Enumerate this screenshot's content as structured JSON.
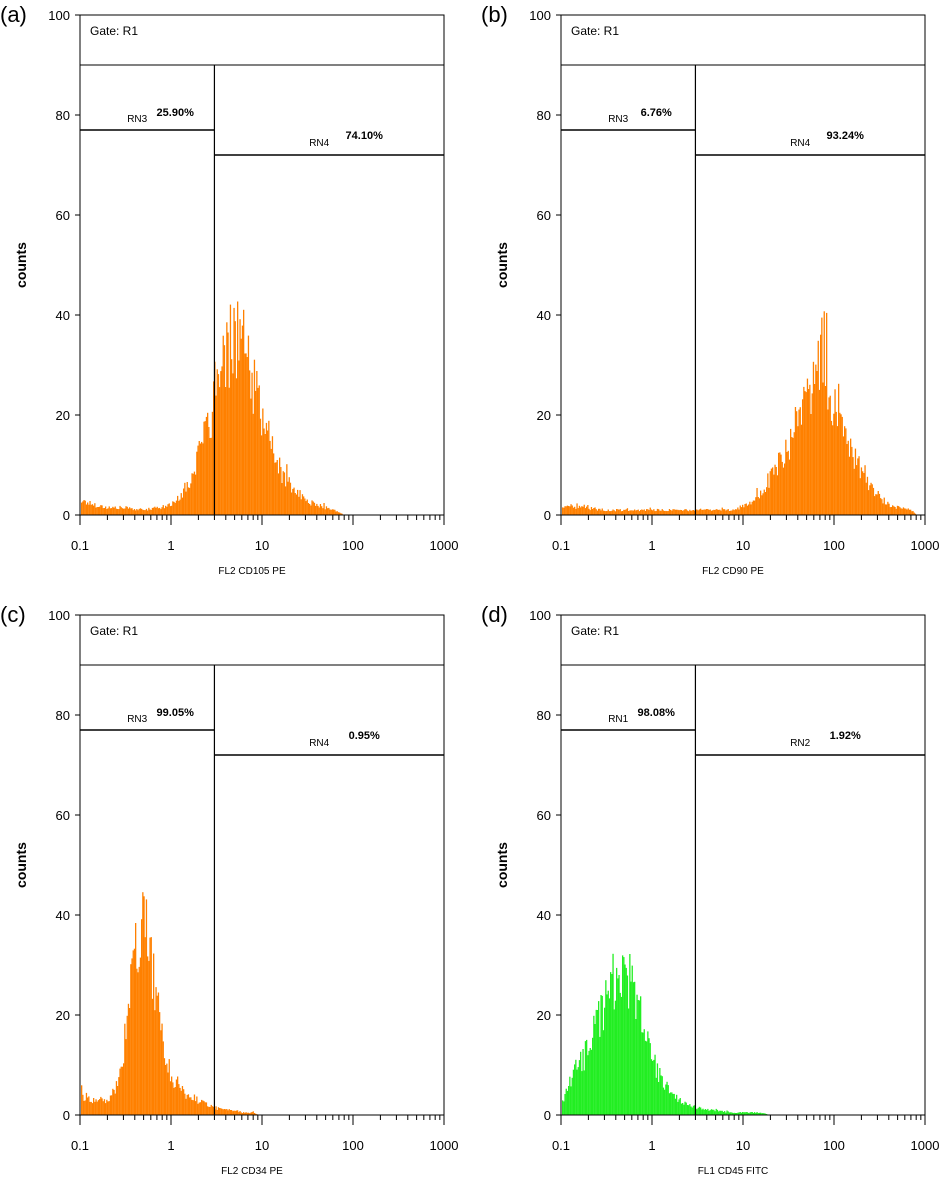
{
  "colors": {
    "orange": "#ff8000",
    "green": "#22ee22"
  },
  "chart_data": [
    {
      "panel": "(a)",
      "type": "histogram",
      "gate_label": "Gate: R1",
      "xlabel": "FL2  CD105 PE",
      "ylabel": "counts",
      "x_scale": "log",
      "xlim": [
        0.1,
        1000
      ],
      "ylim": [
        0,
        100
      ],
      "x_ticks": [
        "0.1",
        "1",
        "10",
        "100",
        "1000"
      ],
      "y_ticks": [
        "0",
        "20",
        "40",
        "60",
        "80",
        "100"
      ],
      "color": "#ff8000",
      "histogram": {
        "x": [
          0.1,
          0.15,
          0.2,
          0.3,
          0.5,
          0.7,
          1,
          1.5,
          2,
          2.5,
          3,
          4,
          5,
          6,
          7,
          8,
          10,
          12,
          15,
          20,
          30,
          40,
          50,
          70,
          80
        ],
        "y": [
          3,
          2,
          1.5,
          1.5,
          1,
          1.5,
          2,
          6,
          12,
          18,
          24,
          32,
          38,
          36,
          30,
          26,
          20,
          15,
          10,
          6,
          3,
          2,
          1.5,
          0.5,
          0
        ]
      },
      "gate_x": 3,
      "regions": [
        {
          "name": "RN3",
          "percent": "25.90%",
          "y": 77
        },
        {
          "name": "RN4",
          "percent": "74.10%",
          "y": 72
        }
      ]
    },
    {
      "panel": "(b)",
      "type": "histogram",
      "gate_label": "Gate: R1",
      "xlabel": "FL2  CD90 PE",
      "ylabel": "counts",
      "x_scale": "log",
      "xlim": [
        0.1,
        1000
      ],
      "ylim": [
        0,
        100
      ],
      "x_ticks": [
        "0.1",
        "1",
        "10",
        "100",
        "1000"
      ],
      "y_ticks": [
        "0",
        "20",
        "40",
        "60",
        "80",
        "100"
      ],
      "color": "#ff8000",
      "histogram": {
        "x": [
          0.1,
          0.3,
          1,
          3,
          5,
          8,
          10,
          15,
          20,
          30,
          40,
          50,
          60,
          70,
          80,
          100,
          130,
          150,
          200,
          250,
          300,
          400,
          500,
          700,
          800
        ],
        "y": [
          2,
          1,
          1,
          1,
          1,
          1,
          2,
          4,
          8,
          14,
          20,
          25,
          28,
          30,
          28,
          24,
          18,
          14,
          9,
          6,
          4,
          2,
          1.5,
          1,
          0
        ]
      },
      "gate_x": 3,
      "regions": [
        {
          "name": "RN3",
          "percent": "6.76%",
          "y": 77
        },
        {
          "name": "RN4",
          "percent": "93.24%",
          "y": 72
        }
      ]
    },
    {
      "panel": "(c)",
      "type": "histogram",
      "gate_label": "Gate: R1",
      "xlabel": "FL2  CD34 PE",
      "ylabel": "counts",
      "x_scale": "log",
      "xlim": [
        0.1,
        1000
      ],
      "ylim": [
        0,
        100
      ],
      "x_ticks": [
        "0.1",
        "1",
        "10",
        "100",
        "1000"
      ],
      "y_ticks": [
        "0",
        "20",
        "40",
        "60",
        "80",
        "100"
      ],
      "color": "#ff8000",
      "histogram": {
        "x": [
          0.1,
          0.15,
          0.2,
          0.25,
          0.3,
          0.35,
          0.4,
          0.45,
          0.5,
          0.55,
          0.6,
          0.7,
          0.8,
          1,
          1.2,
          1.5,
          2,
          2.5,
          3,
          4,
          5,
          6,
          7,
          8,
          9
        ],
        "y": [
          4,
          3,
          3,
          6,
          14,
          24,
          34,
          40,
          42,
          40,
          34,
          22,
          14,
          8,
          6,
          4,
          3,
          2,
          1.5,
          1,
          1,
          0.5,
          0.5,
          0.5,
          0
        ]
      },
      "gate_x": 3,
      "regions": [
        {
          "name": "RN3",
          "percent": "99.05%",
          "y": 77
        },
        {
          "name": "RN4",
          "percent": "0.95%",
          "y": 72
        }
      ]
    },
    {
      "panel": "(d)",
      "type": "histogram",
      "gate_label": "Gate: R1",
      "xlabel": "FL1  CD45 FITC",
      "ylabel": "counts",
      "x_scale": "log",
      "xlim": [
        0.1,
        1000
      ],
      "ylim": [
        0,
        100
      ],
      "x_ticks": [
        "0.1",
        "1",
        "10",
        "100",
        "1000"
      ],
      "y_ticks": [
        "0",
        "20",
        "40",
        "60",
        "80",
        "100"
      ],
      "color": "#22ee22",
      "histogram": {
        "x": [
          0.1,
          0.12,
          0.15,
          0.2,
          0.25,
          0.3,
          0.35,
          0.4,
          0.45,
          0.5,
          0.6,
          0.7,
          0.8,
          1,
          1.2,
          1.5,
          2,
          2.5,
          3,
          4,
          5,
          7,
          10,
          15,
          20
        ],
        "y": [
          2,
          6,
          10,
          14,
          20,
          24,
          27,
          28,
          29,
          28,
          26,
          22,
          17,
          11,
          8,
          5,
          3,
          2,
          1.5,
          1,
          1,
          0.5,
          0.5,
          0.5,
          0
        ]
      },
      "gate_x": 3,
      "regions": [
        {
          "name": "RN1",
          "percent": "98.08%",
          "y": 77
        },
        {
          "name": "RN2",
          "percent": "1.92%",
          "y": 72
        }
      ]
    }
  ]
}
